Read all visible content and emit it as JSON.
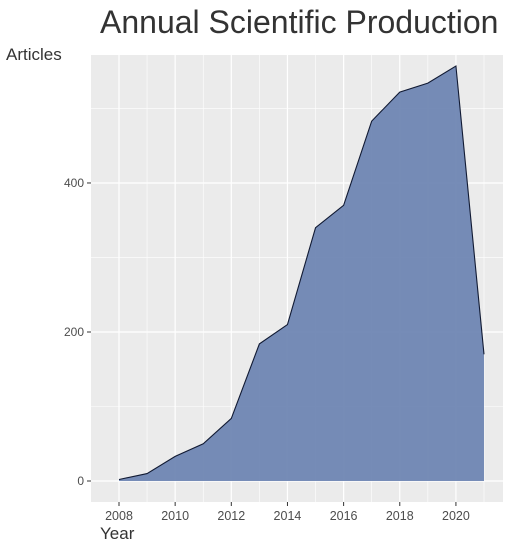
{
  "chart_data": {
    "type": "area",
    "title": "Annual Scientific Production",
    "xlabel": "Year",
    "ylabel": "Articles",
    "x": [
      2008,
      2009,
      2010,
      2011,
      2012,
      2013,
      2014,
      2015,
      2016,
      2017,
      2018,
      2019,
      2020,
      2021
    ],
    "values": [
      2,
      10,
      33,
      50,
      84,
      184,
      210,
      340,
      370,
      483,
      522,
      534,
      557,
      170
    ],
    "xlim": [
      2008,
      2021
    ],
    "ylim": [
      0,
      557
    ],
    "x_ticks": [
      2008,
      2010,
      2012,
      2014,
      2016,
      2018,
      2020
    ],
    "y_ticks": [
      0,
      200,
      400
    ],
    "x_tick_labels": [
      "2008",
      "2010",
      "2012",
      "2014",
      "2016",
      "2018",
      "2020"
    ],
    "y_tick_labels": [
      "0",
      "200",
      "400"
    ],
    "grid": true,
    "colors": {
      "fill": "#6f86b3",
      "outline": "#111a33",
      "panel": "#ebebeb",
      "grid": "#ffffff"
    }
  }
}
